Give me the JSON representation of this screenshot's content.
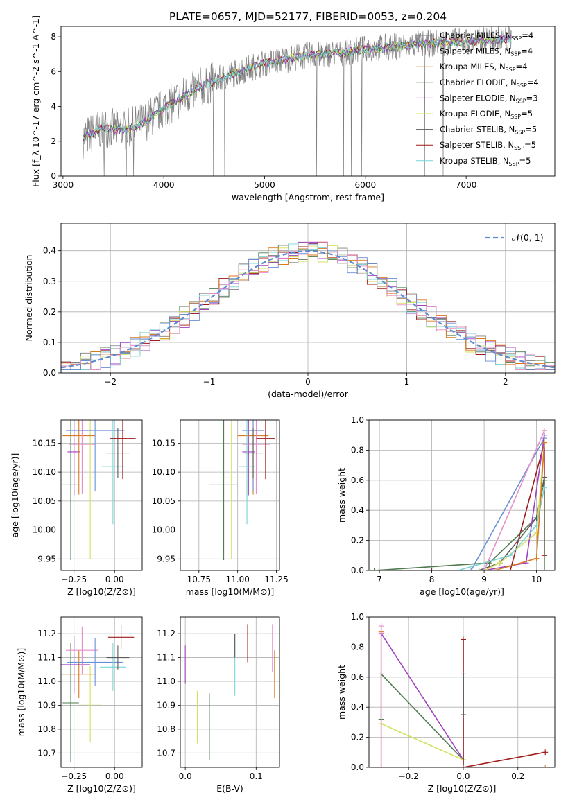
{
  "figure": {
    "title": "PLATE=0657, MJD=52177, FIBERID=0053, z=0.204"
  },
  "series_colors": [
    "#7f7f7f",
    "#e5776f",
    "#d97a1f",
    "#4e7a4e",
    "#a040c0",
    "#d4e060",
    "#5a5a5a",
    "#a01818",
    "#7ad4d4",
    "#e58fc8",
    "#c8c8a0",
    "#6a8fd4"
  ],
  "legend": [
    {
      "name": "Chabrier MILES, N",
      "sub": "SSP",
      "tail": "=4",
      "color": "#7f7f7f"
    },
    {
      "name": "Salpeter MILES, N",
      "sub": "SSP",
      "tail": "=4",
      "color": "#e5776f"
    },
    {
      "name": "Kroupa MILES, N",
      "sub": "SSP",
      "tail": "=4",
      "color": "#d97a1f"
    },
    {
      "name": "Chabrier ELODIE, N",
      "sub": "SSP",
      "tail": "=4",
      "color": "#4e7a4e"
    },
    {
      "name": "Salpeter ELODIE, N",
      "sub": "SSP",
      "tail": "=3",
      "color": "#a040c0"
    },
    {
      "name": "Kroupa ELODIE, N",
      "sub": "SSP",
      "tail": "=5",
      "color": "#d4e060"
    },
    {
      "name": "Chabrier STELIB, N",
      "sub": "SSP",
      "tail": "=5",
      "color": "#5a5a5a"
    },
    {
      "name": "Salpeter STELIB, N",
      "sub": "SSP",
      "tail": "=5",
      "color": "#a01818"
    },
    {
      "name": "Kroupa STELIB, N",
      "sub": "SSP",
      "tail": "=5",
      "color": "#7ad4d4"
    }
  ],
  "chart_data": [
    {
      "id": "spectrum",
      "type": "line",
      "xlabel": "wavelength [Angstrom, rest frame]",
      "ylabel": "Flux [f_λ 10^-17 erg cm^-2 s^-1 A^-1]",
      "xlim": [
        2980,
        7880
      ],
      "ylim": [
        0,
        8.6
      ],
      "xticks": [
        3000,
        4000,
        5000,
        6000,
        7000
      ],
      "yticks": [
        0,
        2,
        4,
        6,
        8
      ],
      "x": [
        3200,
        3400,
        3600,
        3800,
        4000,
        4200,
        4400,
        4600,
        4800,
        5000,
        5200,
        5400,
        5600,
        5800,
        6000,
        6200,
        6400,
        6600,
        6800,
        7000,
        7200,
        7400,
        7600,
        7800
      ],
      "y": [
        2.2,
        2.8,
        2.6,
        3.1,
        3.9,
        4.6,
        5.2,
        5.7,
        6.1,
        6.5,
        6.7,
        6.9,
        7.0,
        7.1,
        7.3,
        7.4,
        7.5,
        7.6,
        7.7,
        7.75,
        7.8,
        7.85,
        7.9,
        7.95
      ],
      "grid": false,
      "legend": "right"
    },
    {
      "id": "residuals",
      "type": "line",
      "xlabel": "(data-model)/error",
      "ylabel": "Normed distribution",
      "xlim": [
        -2.5,
        2.5
      ],
      "ylim": [
        0,
        0.49
      ],
      "xticks": [
        -2,
        -1,
        0,
        1,
        2
      ],
      "yticks": [
        0.0,
        0.1,
        0.2,
        0.3,
        0.4
      ],
      "legend_label": "𝒩(0, 1)",
      "grid": true,
      "legend": "top-right",
      "x": [
        -2.5,
        -2,
        -1.5,
        -1,
        -0.5,
        0,
        0.5,
        1,
        1.5,
        2,
        2.5
      ],
      "y": [
        0.018,
        0.054,
        0.13,
        0.242,
        0.352,
        0.399,
        0.352,
        0.242,
        0.13,
        0.054,
        0.018
      ]
    },
    {
      "id": "age_vs_Z",
      "type": "scatter",
      "xlabel": "Z [log10(Z/Z⊙)]",
      "ylabel": "age [log10(age/yr)]",
      "xlim": [
        -0.33,
        0.17
      ],
      "ylim": [
        9.93,
        10.19
      ],
      "xticks": [
        -0.25,
        0.0
      ],
      "yticks": [
        9.95,
        10.0,
        10.05,
        10.1,
        10.15
      ],
      "grid": true,
      "points": [
        {
          "x": -0.27,
          "y": 10.078,
          "xerr": 0.05,
          "yerr": 0.13,
          "series": 3
        },
        {
          "x": -0.15,
          "y": 10.09,
          "xerr": 0.05,
          "yerr": 0.14,
          "series": 5
        },
        {
          "x": -0.25,
          "y": 10.135,
          "xerr": 0.04,
          "yerr": 0.075,
          "series": 4
        },
        {
          "x": -0.22,
          "y": 10.163,
          "xerr": 0.1,
          "yerr": 0.102,
          "series": 2
        },
        {
          "x": -0.2,
          "y": 10.148,
          "xerr": 0.08,
          "yerr": 0.085,
          "series": 9
        },
        {
          "x": -0.12,
          "y": 10.172,
          "xerr": 0.18,
          "yerr": 0.105,
          "series": 11
        },
        {
          "x": -0.01,
          "y": 10.11,
          "xerr": 0.07,
          "yerr": 0.1,
          "series": 8
        },
        {
          "x": 0.02,
          "y": 10.133,
          "xerr": 0.07,
          "yerr": 0.043,
          "series": 6
        },
        {
          "x": 0.05,
          "y": 10.158,
          "xerr": 0.08,
          "yerr": 0.07,
          "series": 7
        }
      ]
    },
    {
      "id": "age_vs_mass",
      "type": "scatter",
      "xlabel": "mass [log10(M/M⊙)]",
      "ylabel": "",
      "xlim": [
        10.63,
        11.27
      ],
      "ylim": [
        9.93,
        10.19
      ],
      "xticks": [
        10.75,
        11.0,
        11.25
      ],
      "yticks": [
        9.95,
        10.0,
        10.05,
        10.1,
        10.15
      ],
      "grid": true,
      "points": [
        {
          "x": 10.91,
          "y": 10.078,
          "xerr": 0.09,
          "yerr": 0.13,
          "series": 3
        },
        {
          "x": 10.96,
          "y": 10.09,
          "xerr": 0.07,
          "yerr": 0.14,
          "series": 5
        },
        {
          "x": 11.07,
          "y": 10.135,
          "xerr": 0.04,
          "yerr": 0.075,
          "series": 4
        },
        {
          "x": 11.1,
          "y": 10.163,
          "xerr": 0.1,
          "yerr": 0.102,
          "series": 2
        },
        {
          "x": 11.12,
          "y": 10.148,
          "xerr": 0.09,
          "yerr": 0.085,
          "series": 9
        },
        {
          "x": 11.1,
          "y": 10.172,
          "xerr": 0.07,
          "yerr": 0.105,
          "series": 11
        },
        {
          "x": 11.06,
          "y": 10.11,
          "xerr": 0.05,
          "yerr": 0.1,
          "series": 8
        },
        {
          "x": 11.1,
          "y": 10.133,
          "xerr": 0.06,
          "yerr": 0.043,
          "series": 6
        },
        {
          "x": 11.18,
          "y": 10.158,
          "xerr": 0.06,
          "yerr": 0.07,
          "series": 7
        }
      ]
    },
    {
      "id": "massweight_vs_age",
      "type": "line",
      "xlabel": "age  [log10(age/yr)]",
      "ylabel": "mass weight",
      "xlim": [
        6.8,
        10.35
      ],
      "ylim": [
        0,
        1.0
      ],
      "xticks": [
        7,
        8,
        9,
        10
      ],
      "yticks": [
        0.0,
        0.2,
        0.4,
        0.6,
        0.8,
        1.0
      ],
      "grid": true,
      "series": [
        {
          "color": 11,
          "x": [
            8.75,
            10.15
          ],
          "y": [
            0.0,
            0.88
          ]
        },
        {
          "color": 7,
          "x": [
            8.0,
            8.9,
            9.5,
            10.15,
            10.15
          ],
          "y": [
            0.0,
            0.0,
            0.0,
            0.85,
            0.1
          ]
        },
        {
          "color": 3,
          "x": [
            6.9,
            9.1,
            10.0,
            10.15,
            10.15
          ],
          "y": [
            0.0,
            0.05,
            0.35,
            0.6,
            0.0
          ]
        },
        {
          "color": 6,
          "x": [
            8.9,
            9.3,
            10.0,
            10.15
          ],
          "y": [
            0.0,
            0.05,
            0.35,
            0.62
          ]
        },
        {
          "color": 4,
          "x": [
            9.0,
            9.8,
            10.15
          ],
          "y": [
            0.0,
            0.05,
            0.9
          ]
        },
        {
          "color": 5,
          "x": [
            9.0,
            9.3,
            10.0,
            10.15
          ],
          "y": [
            0.0,
            0.05,
            0.25,
            0.85
          ]
        },
        {
          "color": 8,
          "x": [
            8.5,
            9.5,
            10.0,
            10.15
          ],
          "y": [
            0.0,
            0.1,
            0.3,
            0.55
          ]
        },
        {
          "color": 2,
          "x": [
            9.2,
            10.0,
            10.15
          ],
          "y": [
            0.0,
            0.08,
            0.85
          ]
        },
        {
          "color": 9,
          "x": [
            9.0,
            10.15
          ],
          "y": [
            0.0,
            0.93
          ]
        }
      ]
    },
    {
      "id": "mass_vs_Z",
      "type": "scatter",
      "xlabel": "Z [log10(Z/Z⊙)]",
      "ylabel": "mass [log10(M/M⊙)]",
      "xlim": [
        -0.33,
        0.17
      ],
      "ylim": [
        10.64,
        11.27
      ],
      "xticks": [
        -0.25,
        0.0
      ],
      "yticks": [
        10.7,
        10.8,
        10.9,
        11.0,
        11.1,
        11.2
      ],
      "grid": true,
      "points": [
        {
          "x": -0.27,
          "y": 10.91,
          "xerr": 0.05,
          "yerr": 0.25,
          "series": 3
        },
        {
          "x": -0.15,
          "y": 10.905,
          "xerr": 0.07,
          "yerr": 0.16,
          "series": 5
        },
        {
          "x": -0.22,
          "y": 11.03,
          "xerr": 0.11,
          "yerr": 0.1,
          "series": 2
        },
        {
          "x": -0.25,
          "y": 11.07,
          "xerr": 0.1,
          "yerr": 0.12,
          "series": 4
        },
        {
          "x": -0.2,
          "y": 11.13,
          "xerr": 0.1,
          "yerr": 0.1,
          "series": 9
        },
        {
          "x": -0.12,
          "y": 11.08,
          "xerr": 0.17,
          "yerr": 0.1,
          "series": 11
        },
        {
          "x": -0.01,
          "y": 11.06,
          "xerr": 0.08,
          "yerr": 0.1,
          "series": 8
        },
        {
          "x": 0.02,
          "y": 11.1,
          "xerr": 0.07,
          "yerr": 0.05,
          "series": 6
        },
        {
          "x": 0.04,
          "y": 11.185,
          "xerr": 0.08,
          "yerr": 0.05,
          "series": 7
        }
      ]
    },
    {
      "id": "mass_vs_ebv",
      "type": "scatter",
      "xlabel": "E(B-V)",
      "ylabel": "",
      "xlim": [
        -0.007,
        0.133
      ],
      "ylim": [
        10.64,
        11.27
      ],
      "xticks": [
        0.0,
        0.1
      ],
      "yticks": [
        10.7,
        10.8,
        10.9,
        11.0,
        11.1,
        11.2
      ],
      "grid": true,
      "points": [
        {
          "x": 0.0,
          "y": 11.07,
          "xerr": 0,
          "yerr": 0.08,
          "series": 4
        },
        {
          "x": 0.017,
          "y": 10.85,
          "xerr": 0,
          "yerr": 0.11,
          "series": 5
        },
        {
          "x": 0.034,
          "y": 10.81,
          "xerr": 0,
          "yerr": 0.14,
          "series": 3
        },
        {
          "x": 0.07,
          "y": 11.07,
          "xerr": 0,
          "yerr": 0.13,
          "series": 8
        },
        {
          "x": 0.07,
          "y": 11.15,
          "xerr": 0,
          "yerr": 0.05,
          "series": 6
        },
        {
          "x": 0.088,
          "y": 11.16,
          "xerr": 0,
          "yerr": 0.08,
          "series": 7
        },
        {
          "x": 0.123,
          "y": 11.14,
          "xerr": 0,
          "yerr": 0.1,
          "series": 9
        },
        {
          "x": 0.126,
          "y": 11.03,
          "xerr": 0,
          "yerr": 0.1,
          "series": 2
        }
      ]
    },
    {
      "id": "massweight_vs_Z",
      "type": "line",
      "xlabel": "Z [log10(Z/Z⊙)]",
      "ylabel": "mass weight",
      "xlim": [
        -0.345,
        0.335
      ],
      "ylim": [
        0,
        1.0
      ],
      "xticks": [
        -0.2,
        0.0,
        0.2
      ],
      "yticks": [
        0.0,
        0.2,
        0.4,
        0.6,
        0.8,
        1.0
      ],
      "grid": true,
      "series": [
        {
          "color": 4,
          "x": [
            -0.3,
            0.0
          ],
          "y": [
            0.89,
            0.05
          ]
        },
        {
          "color": 3,
          "x": [
            -0.3,
            -0.3,
            0.0
          ],
          "y": [
            0.32,
            0.62,
            0.05
          ]
        },
        {
          "color": 5,
          "x": [
            -0.3,
            0.0
          ],
          "y": [
            0.29,
            0.05
          ]
        },
        {
          "color": 8,
          "x": [
            0.0,
            0.0
          ],
          "y": [
            0.0,
            0.6
          ]
        },
        {
          "color": 7,
          "x": [
            0.0,
            0.0,
            0.3
          ],
          "y": [
            0.85,
            0.0,
            0.1
          ]
        },
        {
          "color": 2,
          "x": [
            -0.3,
            -0.3,
            0.3
          ],
          "y": [
            0.9,
            0.0,
            0.0
          ]
        },
        {
          "color": 9,
          "x": [
            -0.3,
            -0.3,
            0.0
          ],
          "y": [
            0.94,
            0.0,
            0.0
          ]
        },
        {
          "color": 6,
          "x": [
            0.0,
            0.0
          ],
          "y": [
            0.35,
            0.62
          ]
        }
      ]
    }
  ]
}
